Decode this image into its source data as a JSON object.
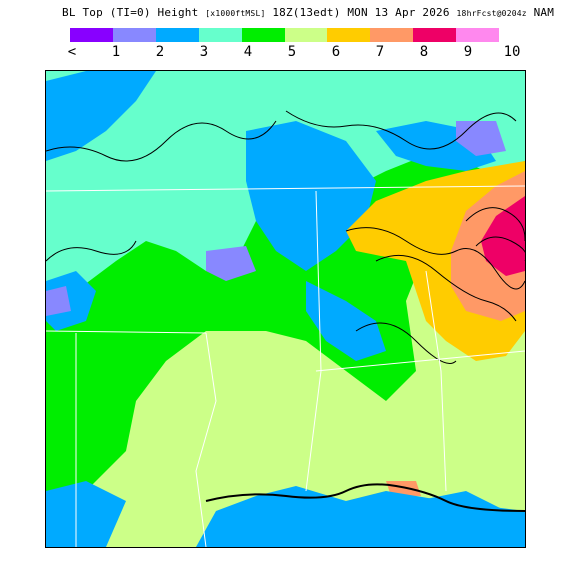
{
  "header": {
    "title_part1": "BL Top (TI=0) Height",
    "units": "[x1000ftMSL]",
    "title_part2": "18Z(13edt) MON 13 Apr 2026",
    "forecast": "18hrFcst@0204z",
    "model": "NAM"
  },
  "legend": {
    "colors": [
      "#8800ff",
      "#8888ff",
      "#00aaff",
      "#66ffcc",
      "#00ee00",
      "#ccff88",
      "#ffcc00",
      "#ff9966",
      "#ee0066",
      "#ff88ee"
    ],
    "labels": [
      "<",
      "1",
      "2",
      "3",
      "4",
      "5",
      "6",
      "7",
      "8",
      "9",
      "10"
    ]
  },
  "map": {
    "icons": [
      "contour-lines",
      "state-borders",
      "coastline"
    ]
  }
}
